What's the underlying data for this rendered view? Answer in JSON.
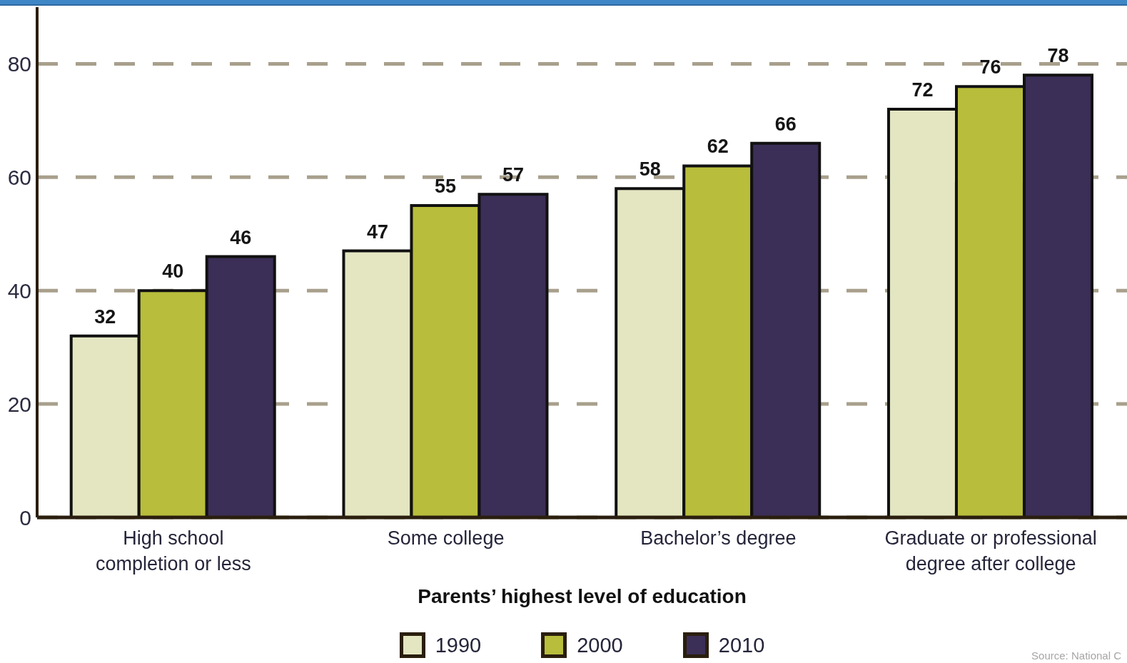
{
  "chart_data": {
    "type": "bar",
    "xlabel": "Parents’ highest level of education",
    "categories": [
      "High school completion or less",
      "Some college",
      "Bachelor’s degree",
      "Graduate or professional degree after college"
    ],
    "series": [
      {
        "name": "1990",
        "color": "#e3e6c1",
        "values": [
          32,
          47,
          58,
          72
        ]
      },
      {
        "name": "2000",
        "color": "#b8bd3b",
        "values": [
          40,
          55,
          62,
          76
        ]
      },
      {
        "name": "2010",
        "color": "#3b2e57",
        "values": [
          46,
          57,
          66,
          78
        ]
      }
    ],
    "ylim": [
      0,
      90
    ],
    "yticks": [
      0,
      20,
      40,
      60,
      80
    ],
    "grid": "y",
    "legend": "bottom",
    "data_labels": true,
    "annotations": [
      "Source: National C"
    ]
  }
}
